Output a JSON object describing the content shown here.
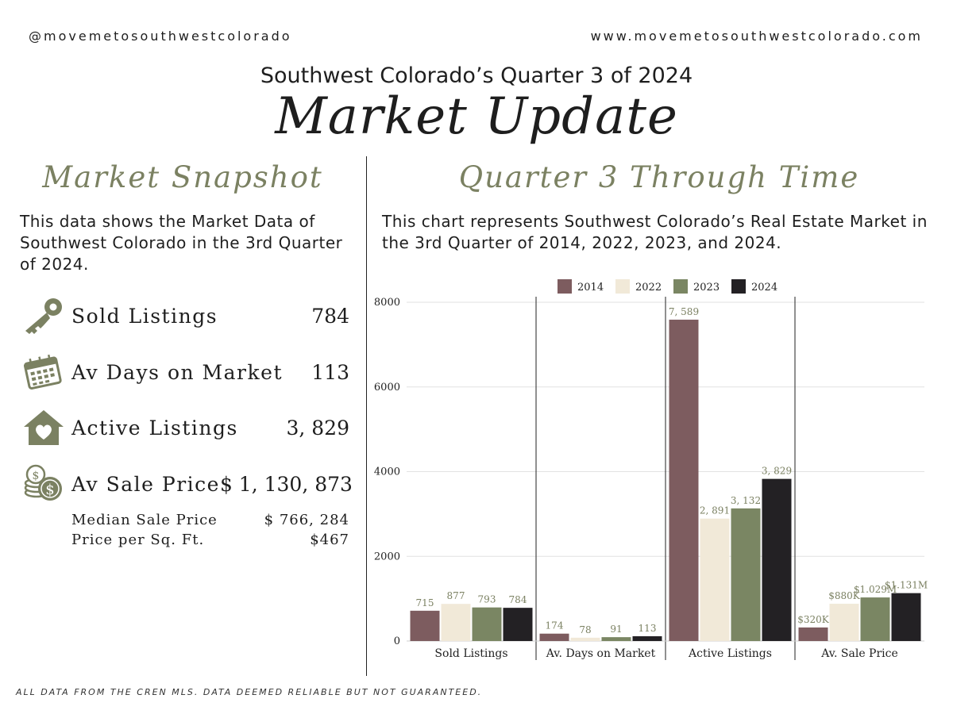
{
  "header": {
    "handle": "@movemetosouthwestcolorado",
    "website": "www.movemetosouthwestcolorado.com",
    "subtitle": "Southwest Colorado’s Quarter 3 of 2024",
    "title": "Market Update"
  },
  "snapshot": {
    "heading": "Market Snapshot",
    "description": "This data shows the Market Data of Southwest Colorado in the 3rd Quarter of 2024.",
    "stats": [
      {
        "label": "Sold Listings",
        "value": "784",
        "icon": "key-icon"
      },
      {
        "label": "Av Days on Market",
        "value": "113",
        "icon": "calendar-icon"
      },
      {
        "label": "Active Listings",
        "value": "3, 829",
        "icon": "house-heart-icon"
      },
      {
        "label": "Av Sale Price",
        "value": "$ 1, 130, 873",
        "icon": "coins-icon"
      }
    ],
    "substats": [
      {
        "label": "Median Sale Price",
        "value": "$ 766, 284"
      },
      {
        "label": "Price per Sq. Ft.",
        "value": "$467"
      }
    ]
  },
  "through_time": {
    "heading": "Quarter 3 Through Time",
    "description": "This chart represents Southwest Colorado’s Real Estate Market in the 3rd Quarter of 2014, 2022, 2023, and 2024."
  },
  "colors": {
    "accent": "#7b8162",
    "y2014": "#7d5c5f",
    "y2022": "#f1e9d8",
    "y2023": "#7a8663",
    "y2024": "#232124"
  },
  "footnote": "ALL DATA FROM THE CREN MLS. DATA DEEMED RELIABLE BUT NOT GUARANTEED.",
  "chart_data": {
    "type": "bar",
    "title": "",
    "xlabel": "",
    "ylabel": "",
    "ylim": [
      0,
      8000
    ],
    "yticks": [
      0,
      2000,
      4000,
      6000,
      8000
    ],
    "grid": true,
    "legend_position": "top-center",
    "categories": [
      "Sold Listings",
      "Av. Days on Market",
      "Active Listings",
      "Av. Sale Price"
    ],
    "series": [
      {
        "name": "2014",
        "color": "#7d5c5f",
        "values": [
          715,
          174,
          7589,
          320
        ],
        "labels": [
          "715",
          "174",
          "7, 589",
          "$320K"
        ]
      },
      {
        "name": "2022",
        "color": "#f1e9d8",
        "values": [
          877,
          78,
          2891,
          880
        ],
        "labels": [
          "877",
          "78",
          "2, 891",
          "$880K"
        ]
      },
      {
        "name": "2023",
        "color": "#7a8663",
        "values": [
          793,
          91,
          3132,
          1029
        ],
        "labels": [
          "793",
          "91",
          "3, 132",
          "$1.029M"
        ]
      },
      {
        "name": "2024",
        "color": "#232124",
        "values": [
          784,
          113,
          3829,
          1131
        ],
        "labels": [
          "784",
          "113",
          "3, 829",
          "$1.131M"
        ]
      }
    ]
  }
}
